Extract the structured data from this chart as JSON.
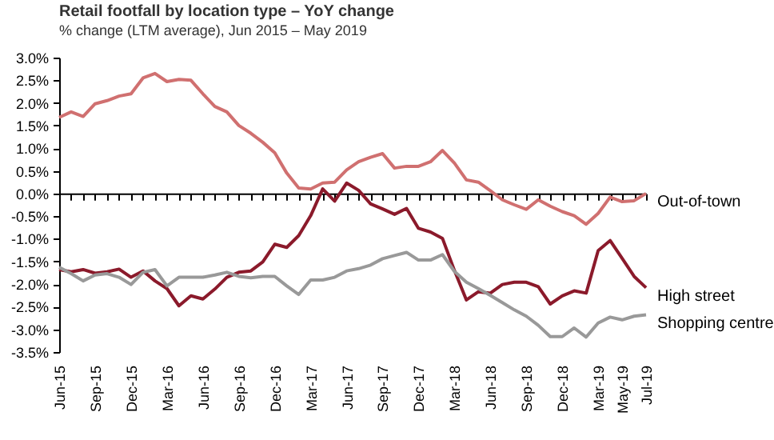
{
  "chart_data": {
    "type": "line",
    "title": "Retail footfall by location type – YoY change",
    "subtitle": "% change (LTM average), Jun 2015 – May 2019",
    "categories": [
      "Jun-15",
      null,
      null,
      "Sep-15",
      null,
      null,
      "Dec-15",
      null,
      null,
      "Mar-16",
      null,
      null,
      "Jun-16",
      null,
      null,
      "Sep-16",
      null,
      null,
      "Dec-16",
      null,
      null,
      "Mar-17",
      null,
      null,
      "Jun-17",
      null,
      null,
      "Sep-17",
      null,
      null,
      "Dec-17",
      null,
      null,
      "Mar-18",
      null,
      null,
      "Jun-18",
      null,
      null,
      "Sep-18",
      null,
      null,
      "Dec-18",
      null,
      null,
      "Mar-19",
      null,
      "May-19",
      null,
      "Jul-19"
    ],
    "series": [
      {
        "name": "Out-of-town",
        "color": "#d07070",
        "values": [
          1.68,
          1.8,
          1.7,
          1.98,
          2.05,
          2.15,
          2.2,
          2.55,
          2.65,
          2.47,
          2.52,
          2.5,
          2.2,
          1.92,
          1.8,
          1.5,
          1.33,
          1.13,
          0.9,
          0.45,
          0.12,
          0.1,
          0.23,
          0.25,
          0.52,
          0.7,
          0.8,
          0.88,
          0.56,
          0.6,
          0.6,
          0.7,
          0.95,
          0.67,
          0.3,
          0.25,
          0.06,
          -0.14,
          -0.25,
          -0.35,
          -0.14,
          -0.28,
          -0.4,
          -0.49,
          -0.68,
          -0.44,
          -0.08,
          -0.18,
          -0.16,
          0.0
        ]
      },
      {
        "name": "High street",
        "color": "#8b1a2b",
        "values": [
          -1.68,
          -1.73,
          -1.68,
          -1.76,
          -1.73,
          -1.67,
          -1.85,
          -1.71,
          -1.93,
          -2.1,
          -2.48,
          -2.26,
          -2.33,
          -2.11,
          -1.85,
          -1.74,
          -1.71,
          -1.51,
          -1.12,
          -1.19,
          -0.93,
          -0.49,
          0.1,
          -0.17,
          0.23,
          0.07,
          -0.23,
          -0.34,
          -0.46,
          -0.33,
          -0.77,
          -0.85,
          -0.99,
          -1.7,
          -2.35,
          -2.17,
          -2.2,
          -2.01,
          -1.96,
          -1.96,
          -2.06,
          -2.44,
          -2.26,
          -2.15,
          -2.2,
          -1.26,
          -1.04,
          -1.43,
          -1.83,
          -2.08
        ]
      },
      {
        "name": "Shopping centre",
        "color": "#999999",
        "values": [
          -1.63,
          -1.77,
          -1.93,
          -1.8,
          -1.77,
          -1.85,
          -2.01,
          -1.74,
          -1.68,
          -2.04,
          -1.85,
          -1.85,
          -1.85,
          -1.8,
          -1.74,
          -1.83,
          -1.86,
          -1.83,
          -1.83,
          -2.04,
          -2.23,
          -1.91,
          -1.91,
          -1.85,
          -1.71,
          -1.66,
          -1.58,
          -1.44,
          -1.37,
          -1.3,
          -1.47,
          -1.47,
          -1.35,
          -1.72,
          -1.96,
          -2.1,
          -2.25,
          -2.41,
          -2.57,
          -2.71,
          -2.91,
          -3.16,
          -3.16,
          -2.97,
          -3.17,
          -2.86,
          -2.73,
          -2.79,
          -2.71,
          -2.68
        ]
      }
    ],
    "ylim": [
      -3.5,
      3.0
    ],
    "yticks": [
      {
        "value": 3.0,
        "label": "3.0%"
      },
      {
        "value": 2.5,
        "label": "2.5%"
      },
      {
        "value": 2.0,
        "label": "2.0%"
      },
      {
        "value": 1.5,
        "label": "1.5%"
      },
      {
        "value": 1.0,
        "label": "1.0%"
      },
      {
        "value": 0.5,
        "label": "0.5%"
      },
      {
        "value": 0.0,
        "label": "0.0%"
      },
      {
        "value": -0.5,
        "label": "-0.5%"
      },
      {
        "value": -1.0,
        "label": "-1.0%"
      },
      {
        "value": -1.5,
        "label": "-1.5%"
      },
      {
        "value": -2.0,
        "label": "-2.0%"
      },
      {
        "value": -2.5,
        "label": "-2.5%"
      },
      {
        "value": -3.0,
        "label": "-3.0%"
      },
      {
        "value": -3.5,
        "label": "-3.5%"
      }
    ],
    "legend": false,
    "marker": "none",
    "line_style": "solid"
  }
}
